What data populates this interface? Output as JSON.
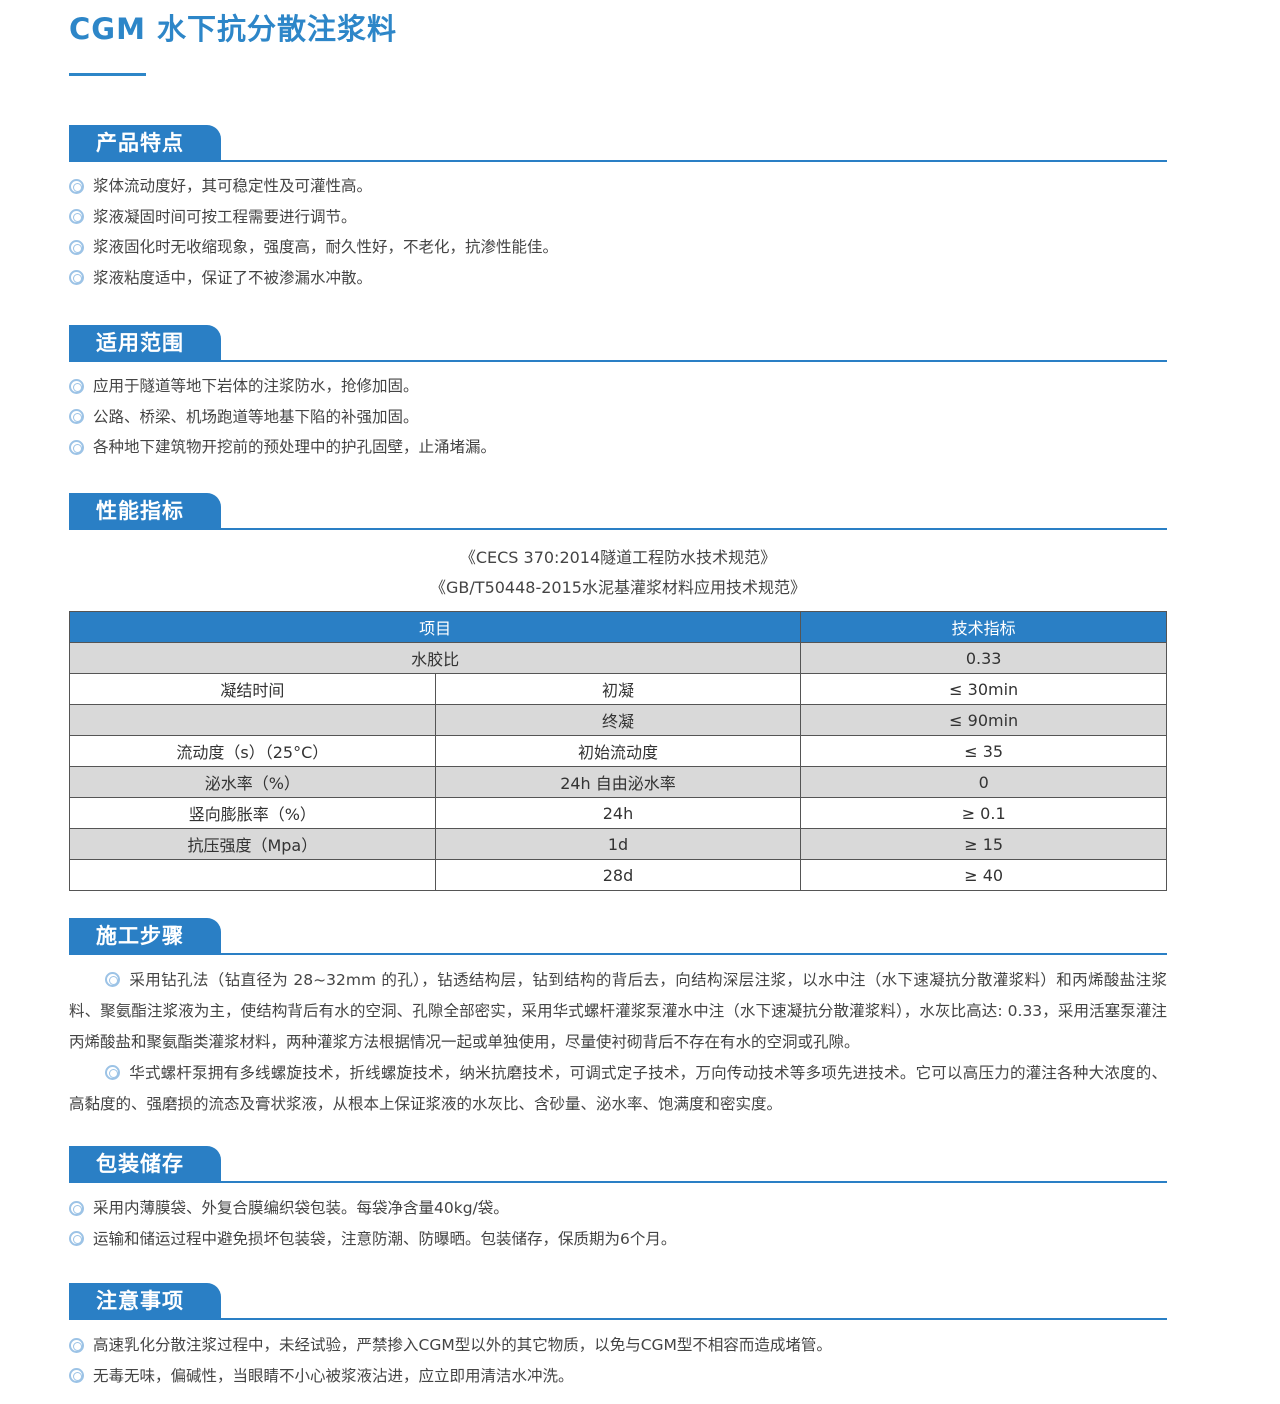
{
  "title": "CGM 水下抗分散注浆料",
  "colors": {
    "accent": "#2a7fc5",
    "row_gray": "#d9d9d9"
  },
  "bullet_icon": "double-circle",
  "sections": {
    "features": {
      "heading": "产品特点",
      "items": [
        "浆体流动度好，其可稳定性及可灌性高。",
        "浆液凝固时间可按工程需要进行调节。",
        "浆液固化时无收缩现象，强度高，耐久性好，不老化，抗渗性能佳。",
        "浆液粘度适中，保证了不被渗漏水冲散。"
      ]
    },
    "scope": {
      "heading": "适用范围",
      "items": [
        "应用于隧道等地下岩体的注浆防水，抢修加固。",
        "公路、桥梁、机场跑道等地基下陷的补强加固。",
        "各种地下建筑物开挖前的预处理中的护孔固壁，止涌堵漏。"
      ]
    },
    "performance": {
      "heading": "性能指标",
      "standards": [
        "《CECS 370:2014隧道工程防水技术规范》",
        "《GB/T50448-2015水泥基灌浆材料应用技术规范》"
      ],
      "table": {
        "header": [
          "项目",
          "技术指标"
        ],
        "ratio": [
          "水胶比",
          "0.33"
        ],
        "rows": [
          [
            "凝结时间",
            "初凝",
            "≤ 30min"
          ],
          [
            "",
            "终凝",
            "≤ 90min"
          ],
          [
            "流动度（s）（25°C）",
            "初始流动度",
            "≤ 35"
          ],
          [
            "泌水率（%）",
            "24h 自由泌水率",
            "0"
          ],
          [
            "竖向膨胀率（%）",
            "24h",
            "≥ 0.1"
          ],
          [
            "抗压强度（Mpa）",
            "1d",
            "≥ 15"
          ],
          [
            "",
            "28d",
            "≥ 40"
          ]
        ]
      }
    },
    "steps": {
      "heading": "施工步骤",
      "paragraphs": [
        "采用钻孔法（钻直径为 28~32mm 的孔），钻透结构层，钻到结构的背后去，向结构深层注浆，以水中注（水下速凝抗分散灌浆料）和丙烯酸盐注浆料、聚氨酯注浆液为主，使结构背后有水的空洞、孔隙全部密实，采用华式螺杆灌浆泵灌水中注（水下速凝抗分散灌浆料），水灰比高达: 0.33，采用活塞泵灌注丙烯酸盐和聚氨酯类灌浆材料，两种灌浆方法根据情况一起或单独使用，尽量使衬砌背后不存在有水的空洞或孔隙。",
        "华式螺杆泵拥有多线螺旋技术，折线螺旋技术，纳米抗磨技术，可调式定子技术，万向传动技术等多项先进技术。它可以高压力的灌注各种大浓度的、高黏度的、强磨损的流态及膏状浆液，从根本上保证浆液的水灰比、含砂量、泌水率、饱满度和密实度。"
      ]
    },
    "packaging": {
      "heading": "包装储存",
      "items": [
        "采用内薄膜袋、外复合膜编织袋包装。每袋净含量40kg/袋。",
        "运输和储运过程中避免损坏包装袋，注意防潮、防曝晒。包装储存，保质期为6个月。"
      ]
    },
    "notes": {
      "heading": "注意事项",
      "items": [
        "高速乳化分散注浆过程中，未经试验，严禁掺入CGM型以外的其它物质，以免与CGM型不相容而造成堵管。",
        "无毒无味，偏碱性，当眼睛不小心被浆液沾进，应立即用清洁水冲洗。"
      ]
    }
  }
}
